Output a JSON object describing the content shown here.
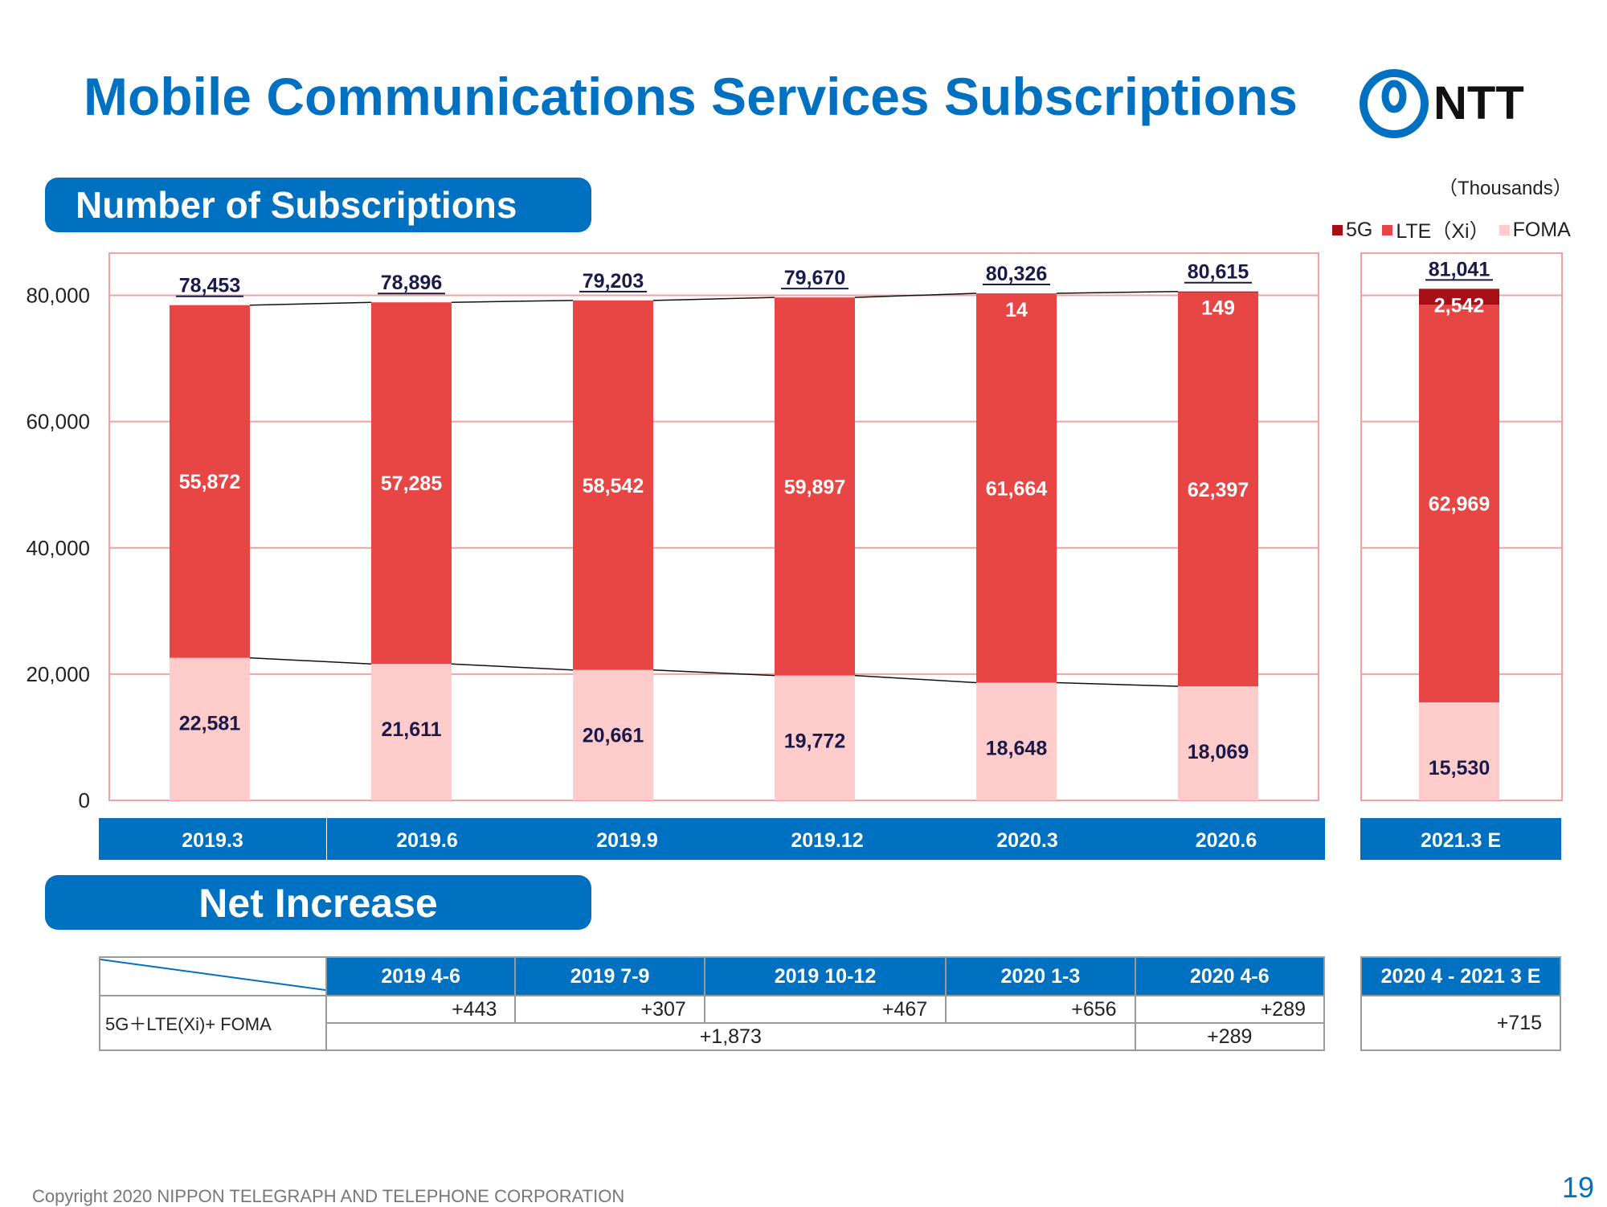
{
  "page": {
    "title": "Mobile Communications Services Subscriptions",
    "section1": "Number of Subscriptions",
    "section2": "Net Increase",
    "unit": "（Thousands）",
    "legend": [
      {
        "label": "5G",
        "color": "#a50f15"
      },
      {
        "label": "LTE（Xi）",
        "color": "#e84545"
      },
      {
        "label": "FOMA",
        "color": "#ffcccc"
      }
    ],
    "footer": "Copyright 2020 NIPPON TELEGRAPH AND TELEPHONE CORPORATION",
    "page_number": "19",
    "logo_text": "NTT"
  },
  "chart_data": {
    "type": "bar",
    "stacked": true,
    "title": "",
    "ylim": [
      0,
      90000
    ],
    "yticks": [
      0,
      20000,
      40000,
      60000,
      80000
    ],
    "ytick_labels": [
      "0",
      "20,000",
      "40,000",
      "60,000",
      "80,000"
    ],
    "categories": [
      "2019.3",
      "2019.6",
      "2019.9",
      "2019.12",
      "2020.3",
      "2020.6",
      "2021.3 E"
    ],
    "series": [
      {
        "name": "FOMA",
        "color": "#ffcccc",
        "values": [
          22581,
          21611,
          20661,
          19772,
          18648,
          18069,
          15530
        ],
        "labels": [
          "22,581",
          "21,611",
          "20,661",
          "19,772",
          "18,648",
          "18,069",
          "15,530"
        ]
      },
      {
        "name": "LTE（Xi）",
        "color": "#e84545",
        "values": [
          55872,
          57285,
          58542,
          59897,
          61664,
          62397,
          62969
        ],
        "labels": [
          "55,872",
          "57,285",
          "58,542",
          "59,897",
          "61,664",
          "62,397",
          "62,969"
        ]
      },
      {
        "name": "5G",
        "color": "#a50f15",
        "values": [
          0,
          0,
          0,
          0,
          14,
          149,
          2542
        ],
        "labels": [
          "",
          "",
          "",
          "",
          "14",
          "149",
          "2,542"
        ]
      }
    ],
    "totals": [
      78453,
      78896,
      79203,
      79670,
      80326,
      80615,
      81041
    ],
    "total_labels": [
      "78,453",
      "78,896",
      "79,203",
      "79,670",
      "80,326",
      "80,615",
      "81,041"
    ]
  },
  "net_increase": {
    "headers": [
      "2019 4-6",
      "2019 7-9",
      "2019 10-12",
      "2020 1-3",
      "2020 4-6"
    ],
    "side_header": "2020 4 - 2021 3 E",
    "row_label": "5G＋LTE(Xi)+ FOMA",
    "quarterly": [
      "+443",
      "+307",
      "+467",
      "+656",
      "+289"
    ],
    "fiscal_2019": "+1,873",
    "fiscal_2020_q1": "+289",
    "forecast": "+715"
  }
}
